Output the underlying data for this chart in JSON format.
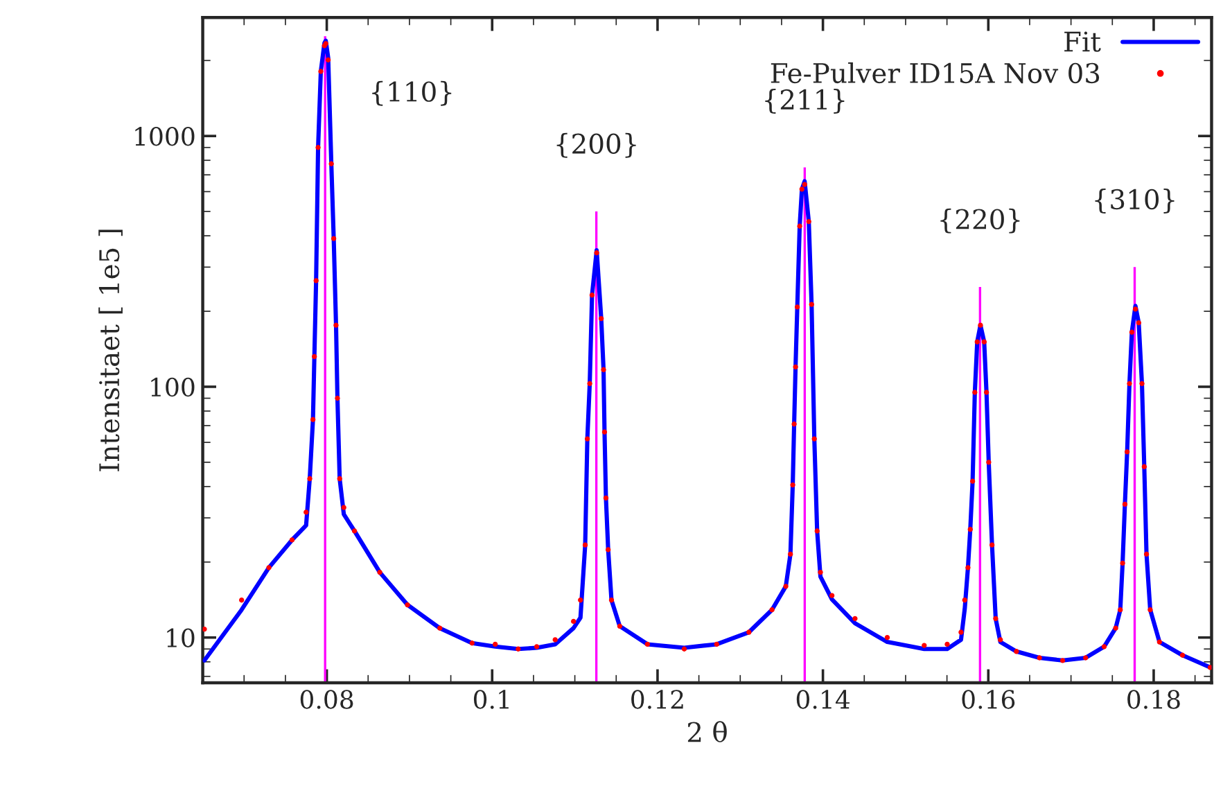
{
  "chart_data": {
    "type": "line",
    "xlabel": "2 θ",
    "ylabel": "Intensitaet [ 1e5 ]",
    "log": "y",
    "grid": false,
    "legend": "top right",
    "xlim": [
      0.065,
      0.187
    ],
    "xticks": [
      0.08,
      0.1,
      0.12,
      0.14,
      0.16,
      0.18
    ],
    "ylim": [
      6.6,
      2970
    ],
    "yticks": [
      10,
      100,
      1000
    ],
    "series": [
      {
        "type": "bar",
        "color": "#ff00ff",
        "x": [
          0.0798,
          0.1126,
          0.1378,
          0.159,
          0.1777
        ],
        "values": [
          2500,
          500,
          750,
          250,
          300
        ]
      },
      {
        "name": "Fit",
        "color": "#0000ff",
        "x": [
          0.0652,
          0.0697,
          0.073,
          0.0758,
          0.0775,
          0.07794,
          0.07833,
          0.0785,
          0.07871,
          0.07895,
          0.07928,
          0.07972,
          0.07988,
          0.08017,
          0.08055,
          0.08084,
          0.08112,
          0.08129,
          0.08156,
          0.08206,
          0.08335,
          0.08641,
          0.08976,
          0.09367,
          0.09757,
          0.10037,
          0.10315,
          0.10539,
          0.10762,
          0.10984,
          0.11068,
          0.11125,
          0.11151,
          0.1118,
          0.11208,
          0.11264,
          0.11319,
          0.11347,
          0.11359,
          0.11376,
          0.11403,
          0.11443,
          0.11543,
          0.11878,
          0.12323,
          0.12715,
          0.13105,
          0.13384,
          0.13551,
          0.13607,
          0.13635,
          0.13652,
          0.13669,
          0.1369,
          0.13719,
          0.13746,
          0.13779,
          0.13829,
          0.13863,
          0.13896,
          0.1393,
          0.1397,
          0.14109,
          0.14388,
          0.14778,
          0.15225,
          0.15503,
          0.1567,
          0.15715,
          0.15754,
          0.15782,
          0.1581,
          0.15837,
          0.15866,
          0.15905,
          0.1595,
          0.15978,
          0.16005,
          0.16045,
          0.16089,
          0.16146,
          0.1634,
          0.16619,
          0.16899,
          0.17177,
          0.17401,
          0.1754,
          0.17596,
          0.17624,
          0.17652,
          0.17679,
          0.17707,
          0.17736,
          0.17779,
          0.17819,
          0.17858,
          0.17886,
          0.17913,
          0.17958,
          0.1807,
          0.18348,
          0.18683
        ],
        "values": [
          8.1,
          12.9,
          19.0,
          24.5,
          28,
          43,
          74,
          132,
          265,
          900,
          1810,
          2350,
          2400,
          2050,
          775,
          390,
          176,
          90,
          43,
          31,
          26.6,
          18.2,
          13.5,
          10.9,
          9.5,
          9.2,
          9.0,
          9.1,
          9.4,
          10.9,
          12.0,
          23.4,
          62,
          103,
          232,
          350,
          187,
          117,
          66,
          36,
          22.4,
          14.1,
          11.1,
          9.4,
          9.1,
          9.4,
          10.5,
          12.9,
          16.0,
          21.5,
          40.6,
          71,
          120,
          208,
          437,
          614,
          660,
          456,
          213,
          62,
          26.6,
          17.5,
          14.2,
          11.4,
          9.6,
          9.0,
          9.0,
          9.8,
          13,
          19,
          27,
          42,
          95,
          151,
          176,
          151,
          95,
          50,
          23.4,
          11.9,
          9.6,
          8.8,
          8.3,
          8.1,
          8.3,
          9.2,
          10.9,
          12.9,
          19.8,
          34,
          55,
          103,
          165,
          210,
          180,
          103,
          48,
          21.5,
          12.9,
          9.6,
          8.5,
          7.6
        ]
      },
      {
        "name": "Fe-Pulver ID15A Nov 03",
        "type": "scatter",
        "marker": "circle",
        "color": "#ff0000",
        "x": [
          0.0652,
          0.0697,
          0.073,
          0.0758,
          0.0775,
          0.07794,
          0.07833,
          0.0785,
          0.07871,
          0.07895,
          0.07928,
          0.07972,
          0.07988,
          0.08017,
          0.08055,
          0.08084,
          0.08112,
          0.08129,
          0.08156,
          0.08206,
          0.08335,
          0.08641,
          0.08976,
          0.09367,
          0.09757,
          0.10037,
          0.10315,
          0.10539,
          0.10762,
          0.10984,
          0.11068,
          0.11125,
          0.11151,
          0.1118,
          0.11208,
          0.11264,
          0.11319,
          0.11347,
          0.11359,
          0.11376,
          0.11403,
          0.11443,
          0.11543,
          0.11878,
          0.12323,
          0.12715,
          0.13105,
          0.13384,
          0.13551,
          0.13607,
          0.13635,
          0.13652,
          0.13669,
          0.1369,
          0.13719,
          0.13746,
          0.13779,
          0.13829,
          0.13863,
          0.13896,
          0.1393,
          0.1397,
          0.14109,
          0.14388,
          0.14778,
          0.15225,
          0.15503,
          0.1567,
          0.15715,
          0.15754,
          0.15782,
          0.1581,
          0.15837,
          0.15866,
          0.15905,
          0.1595,
          0.15978,
          0.16005,
          0.16045,
          0.16089,
          0.16146,
          0.1634,
          0.16619,
          0.16899,
          0.17177,
          0.17401,
          0.1754,
          0.17596,
          0.17624,
          0.17652,
          0.17679,
          0.17707,
          0.17736,
          0.17779,
          0.17819,
          0.17858,
          0.17886,
          0.17913,
          0.17958,
          0.1807,
          0.18348,
          0.18683
        ],
        "values": [
          10.8,
          14.1,
          19.0,
          24.5,
          31.6,
          43,
          74,
          132,
          265,
          900,
          1810,
          2290,
          2335,
          2010,
          775,
          390,
          176,
          90,
          43,
          33,
          26.6,
          18.2,
          13.5,
          10.9,
          9.5,
          9.4,
          9.0,
          9.2,
          9.8,
          11.6,
          14.1,
          23.4,
          62,
          103,
          232,
          342,
          187,
          117,
          66,
          36,
          22.4,
          14.1,
          11.1,
          9.4,
          9.0,
          9.4,
          10.5,
          12.9,
          16.0,
          21.5,
          40.6,
          71,
          120,
          208,
          437,
          614,
          641,
          456,
          213,
          62,
          26.6,
          18.2,
          14.7,
          11.9,
          10.0,
          9.3,
          9.4,
          10.5,
          14.1,
          19,
          27,
          42,
          95,
          151,
          176,
          151,
          95,
          50,
          23.4,
          11.9,
          9.8,
          8.8,
          8.3,
          8.1,
          8.3,
          9.2,
          10.9,
          12.9,
          19.8,
          34,
          55,
          103,
          165,
          204,
          180,
          103,
          48,
          21.5,
          12.9,
          9.6,
          8.5,
          7.6
        ]
      }
    ],
    "annotations": [
      "{110}",
      "{200}",
      "{211}",
      "{220}",
      "{310}"
    ]
  }
}
